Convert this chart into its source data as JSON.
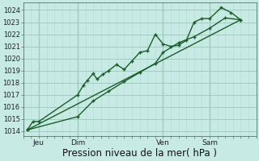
{
  "bg_color": "#c8eae4",
  "grid_major_color": "#a0ccbf",
  "grid_minor_color": "#b8ddd6",
  "line_color": "#1a5c28",
  "xlabel": "Pression niveau de la mer( hPa )",
  "xlabel_fontsize": 8.5,
  "yticks": [
    1014,
    1015,
    1016,
    1017,
    1018,
    1019,
    1020,
    1021,
    1022,
    1023,
    1024
  ],
  "ylim": [
    1013.6,
    1024.6
  ],
  "xlim": [
    0,
    120
  ],
  "xtick_labels": [
    "Jeu",
    "Dim",
    "Ven",
    "Sam"
  ],
  "xtick_positions": [
    8,
    28,
    72,
    96
  ],
  "vline_positions": [
    8,
    28,
    72,
    96
  ],
  "line1_x": [
    2,
    5,
    8,
    28,
    31,
    33,
    36,
    38,
    41,
    44,
    48,
    52,
    56,
    60,
    64,
    68,
    72,
    76,
    80,
    84,
    88,
    92,
    96,
    102,
    107,
    112
  ],
  "line1_y": [
    1014.1,
    1014.8,
    1014.8,
    1017.0,
    1017.8,
    1018.2,
    1018.75,
    1018.3,
    1018.7,
    1019.0,
    1019.5,
    1019.1,
    1019.8,
    1020.5,
    1020.65,
    1022.0,
    1021.2,
    1021.0,
    1021.1,
    1021.5,
    1023.0,
    1023.3,
    1023.3,
    1024.2,
    1023.8,
    1023.2
  ],
  "line2_x": [
    2,
    28,
    36,
    44,
    52,
    60,
    68,
    72,
    80,
    88,
    96,
    104,
    112
  ],
  "line2_y": [
    1014.1,
    1015.2,
    1016.5,
    1017.3,
    1018.1,
    1018.85,
    1019.6,
    1020.5,
    1021.3,
    1021.8,
    1022.5,
    1023.35,
    1023.2
  ],
  "trend_x": [
    2,
    112
  ],
  "trend_y": [
    1014.1,
    1023.2
  ]
}
